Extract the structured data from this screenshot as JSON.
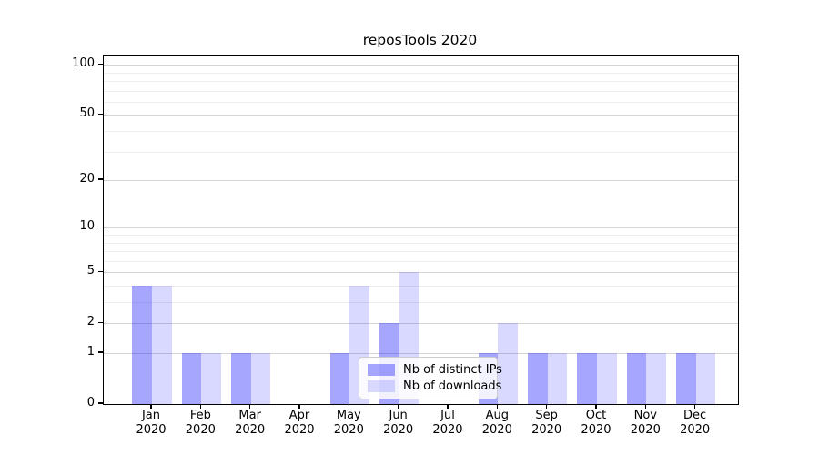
{
  "chart_data": {
    "type": "bar",
    "title": "reposTools 2020",
    "months": [
      "Jan",
      "Feb",
      "Mar",
      "Apr",
      "May",
      "Jun",
      "Jul",
      "Aug",
      "Sep",
      "Oct",
      "Nov",
      "Dec"
    ],
    "year": "2020",
    "series": [
      {
        "name": "Nb of distinct IPs",
        "color": "#0000FF59",
        "values": [
          4,
          1,
          1,
          0,
          1,
          2,
          0,
          1,
          1,
          1,
          1,
          1
        ]
      },
      {
        "name": "Nb of downloads",
        "color": "#0000FF26",
        "values": [
          4,
          1,
          1,
          0,
          4,
          5,
          0,
          2,
          1,
          1,
          1,
          1
        ]
      }
    ],
    "y_axis": {
      "scale": "log1p",
      "major_ticks": [
        0,
        1,
        2,
        5,
        10,
        20,
        50,
        100
      ],
      "minor_gridlines": [
        3,
        4,
        6,
        7,
        8,
        9,
        30,
        40,
        60,
        70,
        80,
        90
      ],
      "ylim": [
        0,
        113
      ]
    },
    "legend": {
      "position": "lower center"
    },
    "grid": true,
    "colors": {
      "major_grid": "#d5d5d5",
      "minor_grid": "#eeeeee",
      "axis": "#000000",
      "legend_border": "#cccccc"
    }
  }
}
